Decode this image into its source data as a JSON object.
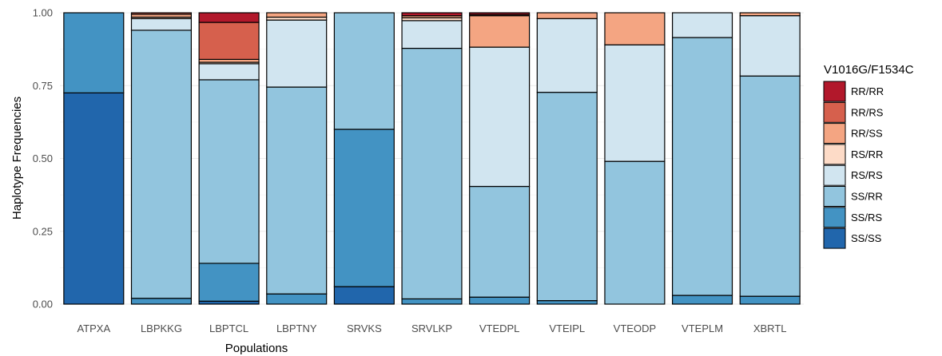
{
  "chart_data": {
    "type": "bar",
    "stacked": true,
    "xlabel": "Populations",
    "ylabel": "Haplotype Frequencies",
    "ylim": [
      0,
      1
    ],
    "yticks": [
      "0.00",
      "0.25",
      "0.50",
      "0.75",
      "1.00"
    ],
    "grid": true,
    "legend_position": "right",
    "legend_title": "V1016G/F1534C",
    "categories": [
      "ATPXA",
      "LBPKKG",
      "LBPTCL",
      "LBPTNY",
      "SRVKS",
      "SRVLKP",
      "VTEDPL",
      "VTEIPL",
      "VTEODP",
      "VTEPLM",
      "XBRTL"
    ],
    "series": [
      {
        "name": "SS/SS",
        "color": "#2166ac",
        "values": [
          0.725,
          0.0,
          0.01,
          0.0,
          0.06,
          0.0,
          0.0,
          0.0,
          0.0,
          0.0,
          0.0
        ]
      },
      {
        "name": "SS/RS",
        "color": "#4393c3",
        "values": [
          0.275,
          0.02,
          0.13,
          0.035,
          0.54,
          0.018,
          0.024,
          0.012,
          0.0,
          0.03,
          0.027
        ]
      },
      {
        "name": "SS/RR",
        "color": "#92c5de",
        "values": [
          0.0,
          0.92,
          0.63,
          0.71,
          0.4,
          0.86,
          0.38,
          0.715,
          0.49,
          0.885,
          0.756
        ]
      },
      {
        "name": "RS/RS",
        "color": "#d1e5f0",
        "values": [
          0.0,
          0.04,
          0.055,
          0.23,
          0.0,
          0.095,
          0.478,
          0.253,
          0.4,
          0.085,
          0.207
        ]
      },
      {
        "name": "RS/RR",
        "color": "#fddbc7",
        "values": [
          0.0,
          0.005,
          0.005,
          0.01,
          0.0,
          0.01,
          0.0,
          0.0,
          0.0,
          0.0,
          0.0
        ]
      },
      {
        "name": "RR/SS",
        "color": "#f4a582",
        "values": [
          0.0,
          0.01,
          0.01,
          0.015,
          0.0,
          0.007,
          0.108,
          0.02,
          0.11,
          0.0,
          0.01
        ]
      },
      {
        "name": "RR/RS",
        "color": "#d6604d",
        "values": [
          0.0,
          0.005,
          0.127,
          0.0,
          0.0,
          0.0,
          0.004,
          0.0,
          0.0,
          0.0,
          0.0
        ]
      },
      {
        "name": "RR/RR",
        "color": "#b2182b",
        "values": [
          0.0,
          0.0,
          0.033,
          0.0,
          0.0,
          0.01,
          0.006,
          0.0,
          0.0,
          0.0,
          0.0
        ]
      }
    ],
    "legend_order": [
      "RR/RR",
      "RR/RS",
      "RR/SS",
      "RS/RR",
      "RS/RS",
      "SS/RR",
      "SS/RS",
      "SS/SS"
    ]
  }
}
